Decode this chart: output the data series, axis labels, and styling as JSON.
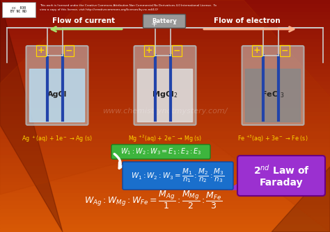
{
  "bg_color_top": "#8B0000",
  "bg_color_bottom": "#CC5500",
  "battery_color": "#999999",
  "flow_current_text": "Flow of current",
  "flow_electron_text": "Flow of electron",
  "beaker1_label": "AgCl",
  "beaker2_label": "MgCl$_2$",
  "beaker3_label": "FeCl$_3$",
  "eq1": "Ag $^+$(aq) + 1e$^-$ → Ag (s)",
  "eq2": "Mg $^{+2}$(aq) + 2e$^-$ → Mg (s)",
  "eq3": "Fe $^{+3}$(aq) + 3e$^-$ → Fe (s)",
  "green_box_text": "$W_1 : W_2 : W_3 = E_1 : E_2 : E_3$",
  "blue_box_formula": "$W_1 : W_2 : W_3 = \\dfrac{M_1}{n_1} : \\dfrac{M_2}{n_2} : \\dfrac{M_3}{n_3}$",
  "purple_line1": "2$^{nd}$ Law of",
  "purple_line2": "Faraday",
  "bottom_formula": "$W_{Ag} : W_{Mg} : W_{Fe} = \\dfrac{M_{Ag}}{1} : \\dfrac{M_{Mg}}{2} : \\dfrac{M_{Fe}}{3}$",
  "watermark": "www.chemistrynotmystery.com/",
  "beaker1_water_color": "#b8dff5",
  "beaker2_water_color": "#e0e0e0",
  "beaker3_water_color": "#888888",
  "electrode_color": "#2244aa",
  "green_box_color": "#3db53d",
  "blue_box_color": "#1a6fcc",
  "purple_box_color": "#9b30d0",
  "yellow_color": "#ffd700",
  "white_color": "#ffffff",
  "wire_color": "#cccccc"
}
